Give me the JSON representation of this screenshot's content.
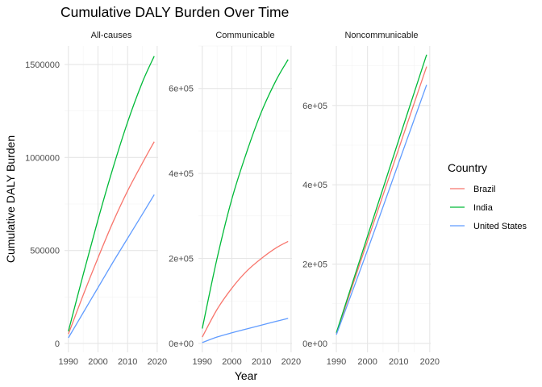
{
  "chart_data": {
    "type": "line",
    "title": "Cumulative DALY Burden Over Time",
    "xlabel": "Year",
    "ylabel": "Cumulative DALY Burden",
    "legend": {
      "title": "Country",
      "position": "right",
      "entries": [
        {
          "name": "Brazil",
          "color": "#F8766D"
        },
        {
          "name": "India",
          "color": "#00BA38"
        },
        {
          "name": "United States",
          "color": "#619CFF"
        }
      ]
    },
    "grid": true,
    "x_ticks": [
      1990,
      2000,
      2010,
      2020
    ],
    "panels": [
      {
        "name": "All-causes",
        "xlim": [
          1990,
          2019
        ],
        "ylim": [
          0,
          1600000
        ],
        "y_ticks": [
          {
            "value": 0,
            "label": "0"
          },
          {
            "value": 500000,
            "label": "500000"
          },
          {
            "value": 1000000,
            "label": "1000000"
          },
          {
            "value": 1500000,
            "label": "1500000"
          }
        ],
        "series": [
          {
            "name": "Brazil",
            "x": [
              1990,
              1995,
              2000,
              2005,
              2010,
              2015,
              2019
            ],
            "values": [
              50000,
              260000,
              460000,
              650000,
              820000,
              970000,
              1085000
            ]
          },
          {
            "name": "India",
            "x": [
              1990,
              1995,
              2000,
              2005,
              2010,
              2015,
              2019
            ],
            "values": [
              65000,
              370000,
              665000,
              940000,
              1190000,
              1405000,
              1545000
            ]
          },
          {
            "name": "United States",
            "x": [
              1990,
              1995,
              2000,
              2005,
              2010,
              2015,
              2019
            ],
            "values": [
              30000,
              165000,
              300000,
              435000,
              565000,
              695000,
              800000
            ]
          }
        ]
      },
      {
        "name": "Communicable",
        "xlim": [
          1990,
          2019
        ],
        "ylim": [
          0,
          700000
        ],
        "y_ticks": [
          {
            "value": 0,
            "label": "0e+00"
          },
          {
            "value": 200000,
            "label": "2e+05"
          },
          {
            "value": 400000,
            "label": "4e+05"
          },
          {
            "value": 600000,
            "label": "6e+05"
          }
        ],
        "series": [
          {
            "name": "Brazil",
            "x": [
              1990,
              1995,
              2000,
              2005,
              2010,
              2015,
              2019
            ],
            "values": [
              15000,
              80000,
              130000,
              170000,
              200000,
              225000,
              240000
            ]
          },
          {
            "name": "India",
            "x": [
              1990,
              1995,
              2000,
              2005,
              2010,
              2015,
              2019
            ],
            "values": [
              35000,
              200000,
              340000,
              450000,
              545000,
              620000,
              668000
            ]
          },
          {
            "name": "United States",
            "x": [
              1990,
              1995,
              2000,
              2005,
              2010,
              2015,
              2019
            ],
            "values": [
              2000,
              15000,
              25000,
              34000,
              43000,
              52000,
              59000
            ]
          }
        ]
      },
      {
        "name": "Noncommunicable",
        "xlim": [
          1990,
          2019
        ],
        "ylim": [
          0,
          750000
        ],
        "y_ticks": [
          {
            "value": 0,
            "label": "0e+00"
          },
          {
            "value": 200000,
            "label": "2e+05"
          },
          {
            "value": 400000,
            "label": "4e+05"
          },
          {
            "value": 600000,
            "label": "6e+05"
          }
        ],
        "series": [
          {
            "name": "Brazil",
            "x": [
              1990,
              2000,
              2010,
              2019
            ],
            "values": [
              25000,
              258000,
              490000,
              698000
            ]
          },
          {
            "name": "India",
            "x": [
              1990,
              2000,
              2010,
              2019
            ],
            "values": [
              27000,
              270000,
              512000,
              728000
            ]
          },
          {
            "name": "United States",
            "x": [
              1990,
              2000,
              2010,
              2019
            ],
            "values": [
              22000,
              235000,
              455000,
              652000
            ]
          }
        ]
      }
    ]
  }
}
